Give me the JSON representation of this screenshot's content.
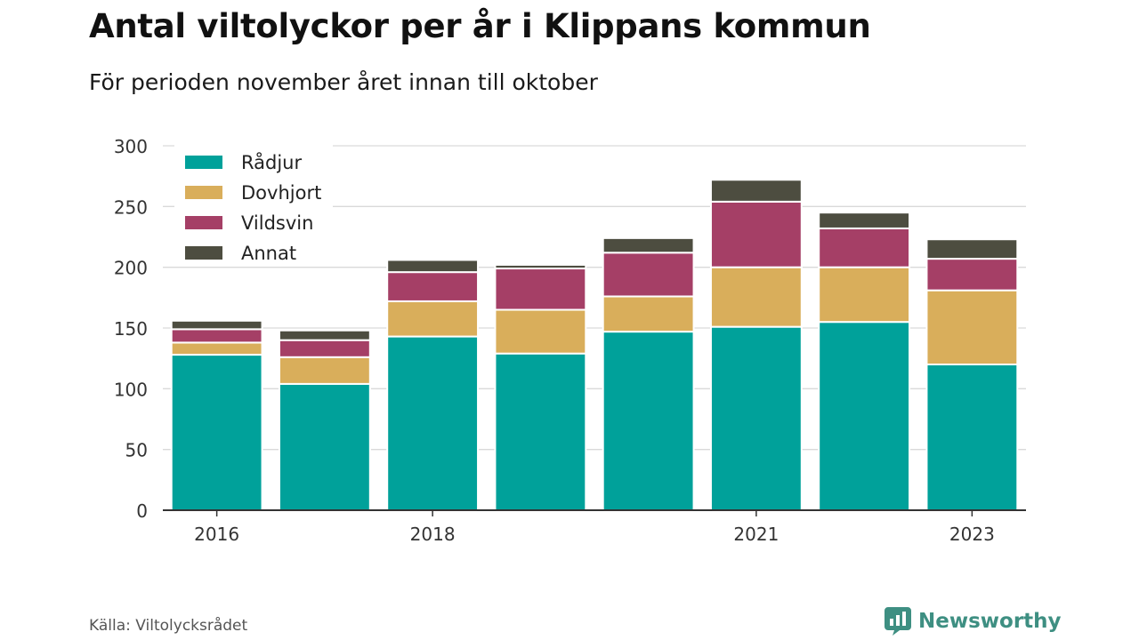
{
  "header": {
    "title": "Antal viltolyckor per år i Klippans kommun",
    "subtitle": "För perioden november året innan till oktober"
  },
  "footer": {
    "source": "Källa: Viltolycksrådet",
    "brand": "Newsworthy",
    "brand_icon": "newsworthy-logo-icon"
  },
  "chart_data": {
    "type": "bar",
    "stacked": true,
    "categories": [
      "2016",
      "2017",
      "2018",
      "2019",
      "2020",
      "2021",
      "2022",
      "2023"
    ],
    "x_tick_labels": [
      "2016",
      "",
      "2018",
      "",
      "",
      "2021",
      "",
      "2023"
    ],
    "series": [
      {
        "name": "Rådjur",
        "color": "#00a19a",
        "values": [
          128,
          104,
          143,
          129,
          147,
          151,
          155,
          120
        ]
      },
      {
        "name": "Dovhjort",
        "color": "#d9ae5b",
        "values": [
          10,
          22,
          29,
          36,
          29,
          49,
          45,
          61
        ]
      },
      {
        "name": "Vildsvin",
        "color": "#a53f66",
        "values": [
          11,
          14,
          24,
          34,
          36,
          54,
          32,
          26
        ]
      },
      {
        "name": "Annat",
        "color": "#4d4d40",
        "values": [
          7,
          8,
          10,
          3,
          12,
          18,
          13,
          16
        ]
      }
    ],
    "title": "Antal viltolyckor per år i Klippans kommun",
    "subtitle": "För perioden november året innan till oktober",
    "xlabel": "",
    "ylabel": "",
    "ylim": [
      0,
      300
    ],
    "yticks": [
      0,
      50,
      100,
      150,
      200,
      250,
      300
    ],
    "grid": true,
    "legend_position": "top-left"
  }
}
